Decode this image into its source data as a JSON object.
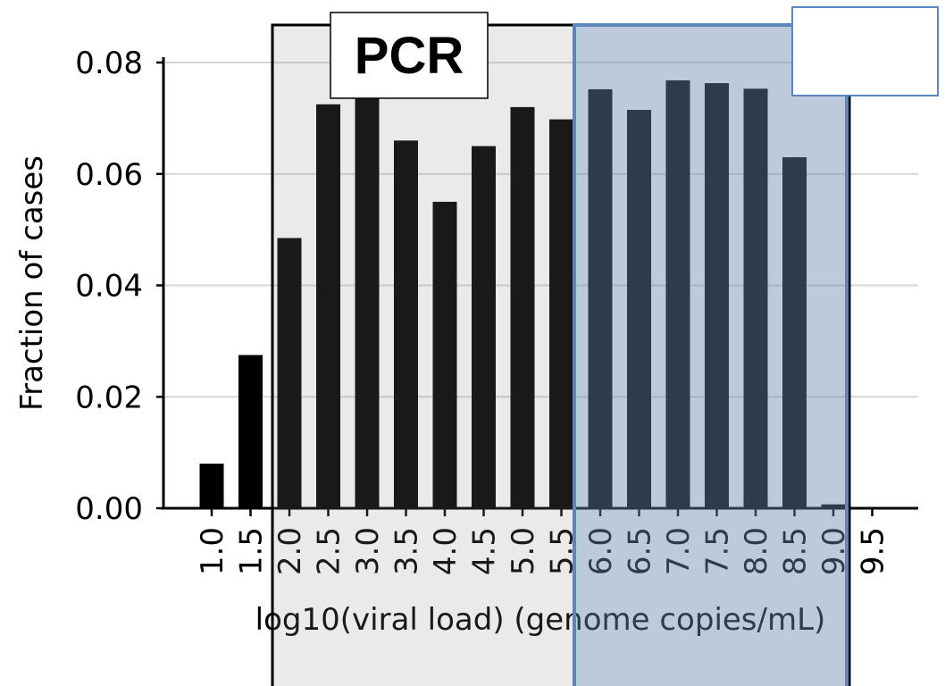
{
  "chart_data": {
    "type": "bar",
    "title": "",
    "xlabel": "log10(viral load) (genome copies/mL)",
    "ylabel": "Fraction of cases",
    "x_ticks": [
      "1.0",
      "1.5",
      "2.0",
      "2.5",
      "3.0",
      "3.5",
      "4.0",
      "4.5",
      "5.0",
      "5.5",
      "6.0",
      "6.5",
      "7.0",
      "7.5",
      "8.0",
      "8.5",
      "9.0",
      "9.5"
    ],
    "y_ticks": [
      "0.00",
      "0.02",
      "0.04",
      "0.06",
      "0.08"
    ],
    "ylim": [
      0,
      0.08
    ],
    "grid": "horizontal",
    "bars": [
      {
        "x": 1.0,
        "value": 0.008
      },
      {
        "x": 1.5,
        "value": 0.0275
      },
      {
        "x": 2.0,
        "value": 0.0485
      },
      {
        "x": 2.5,
        "value": 0.0725
      },
      {
        "x": 3.0,
        "value": 0.0755
      },
      {
        "x": 3.5,
        "value": 0.066
      },
      {
        "x": 4.0,
        "value": 0.055
      },
      {
        "x": 4.5,
        "value": 0.065
      },
      {
        "x": 5.0,
        "value": 0.072
      },
      {
        "x": 5.5,
        "value": 0.0698
      },
      {
        "x": 6.0,
        "value": 0.0752
      },
      {
        "x": 6.5,
        "value": 0.0715
      },
      {
        "x": 7.0,
        "value": 0.0768
      },
      {
        "x": 7.5,
        "value": 0.0763
      },
      {
        "x": 8.0,
        "value": 0.0753
      },
      {
        "x": 8.5,
        "value": 0.063
      },
      {
        "x": 9.0,
        "value": 0.0007
      }
    ],
    "annotations": {
      "pcr_label": "PCR",
      "gray_region_color": "#eaeaea",
      "blue_region_color": "#b9c8da",
      "blue_border_color": "#5b86be",
      "bar_color": "#000000"
    }
  }
}
